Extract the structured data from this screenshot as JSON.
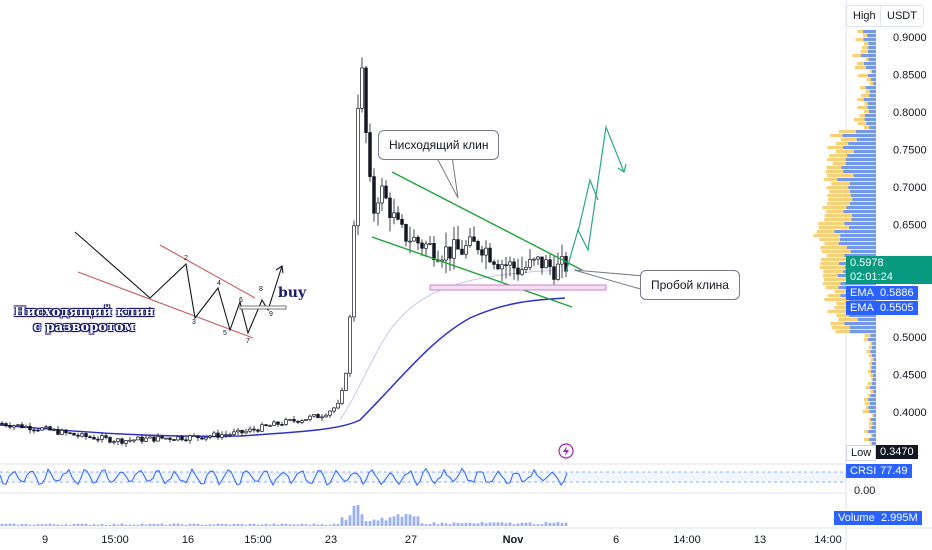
{
  "header": {
    "scale_mode": "High",
    "currency": "USDT"
  },
  "price_axis": {
    "ticks": [
      "0.9000",
      "0.8500",
      "0.8000",
      "0.7500",
      "0.7000",
      "0.6500",
      "0.5978",
      "0.5000",
      "0.4500",
      "0.4000",
      "0.3470"
    ],
    "tick_values": [
      0.9,
      0.85,
      0.8,
      0.75,
      0.7,
      0.65,
      0.5978,
      0.5,
      0.45,
      0.4,
      0.347
    ],
    "countdown": "02:01:24",
    "last_price": "0.5978",
    "low_label": "Low",
    "low_value": "0.3470",
    "ema1_label": "EMA",
    "ema1_value": "0.5886",
    "ema2_label": "EMA",
    "ema2_value": "0.5505",
    "crsi_label": "CRSI",
    "crsi_value": "77.49",
    "crsi_ticks": [
      "0.00"
    ],
    "volume_label": "Volume",
    "volume_value": "2.995M",
    "colors": {
      "up": "#089981",
      "ema_dark": "#3030c8",
      "ema_light": "#b0b0e8",
      "crsi": "#2962ff",
      "tag_blue": "#2962ff"
    }
  },
  "time_axis": {
    "labels": [
      "9",
      "15:00",
      "16",
      "15:00",
      "23",
      "27",
      "Nov",
      "6",
      "14:00",
      "13",
      "14:00"
    ]
  },
  "annotations": {
    "title_line1": "Нисходящий клин",
    "title_line2": "с разворотом",
    "buy_label": "buy",
    "wedge_callout": "Нисходящий клин",
    "breakout_callout": "Пробой клина",
    "wave_numbers": [
      "1",
      "2",
      "3",
      "4",
      "5",
      "6",
      "7",
      "8",
      "9"
    ]
  },
  "chart_data": {
    "type": "candlestick",
    "title": "",
    "y_range": [
      0.33,
      0.935
    ],
    "ema_fast_last": 0.5886,
    "ema_slow_last": 0.5505,
    "session_low": 0.347,
    "last_price": 0.5978,
    "crsi_last": 77.49,
    "volume_last": "2.995M",
    "price_path": [
      [
        0,
        0.385
      ],
      [
        40,
        0.378
      ],
      [
        80,
        0.368
      ],
      [
        120,
        0.362
      ],
      [
        160,
        0.365
      ],
      [
        200,
        0.367
      ],
      [
        240,
        0.372
      ],
      [
        280,
        0.385
      ],
      [
        320,
        0.395
      ],
      [
        340,
        0.41
      ],
      [
        348,
        0.47
      ],
      [
        352,
        0.58
      ],
      [
        356,
        0.73
      ],
      [
        360,
        0.9
      ],
      [
        364,
        0.8
      ],
      [
        368,
        0.74
      ],
      [
        372,
        0.66
      ],
      [
        380,
        0.7
      ],
      [
        390,
        0.67
      ],
      [
        400,
        0.64
      ],
      [
        420,
        0.625
      ],
      [
        440,
        0.615
      ],
      [
        460,
        0.615
      ],
      [
        480,
        0.625
      ],
      [
        500,
        0.6
      ],
      [
        520,
        0.59
      ],
      [
        540,
        0.6
      ],
      [
        556,
        0.59
      ],
      [
        570,
        0.598
      ]
    ]
  }
}
